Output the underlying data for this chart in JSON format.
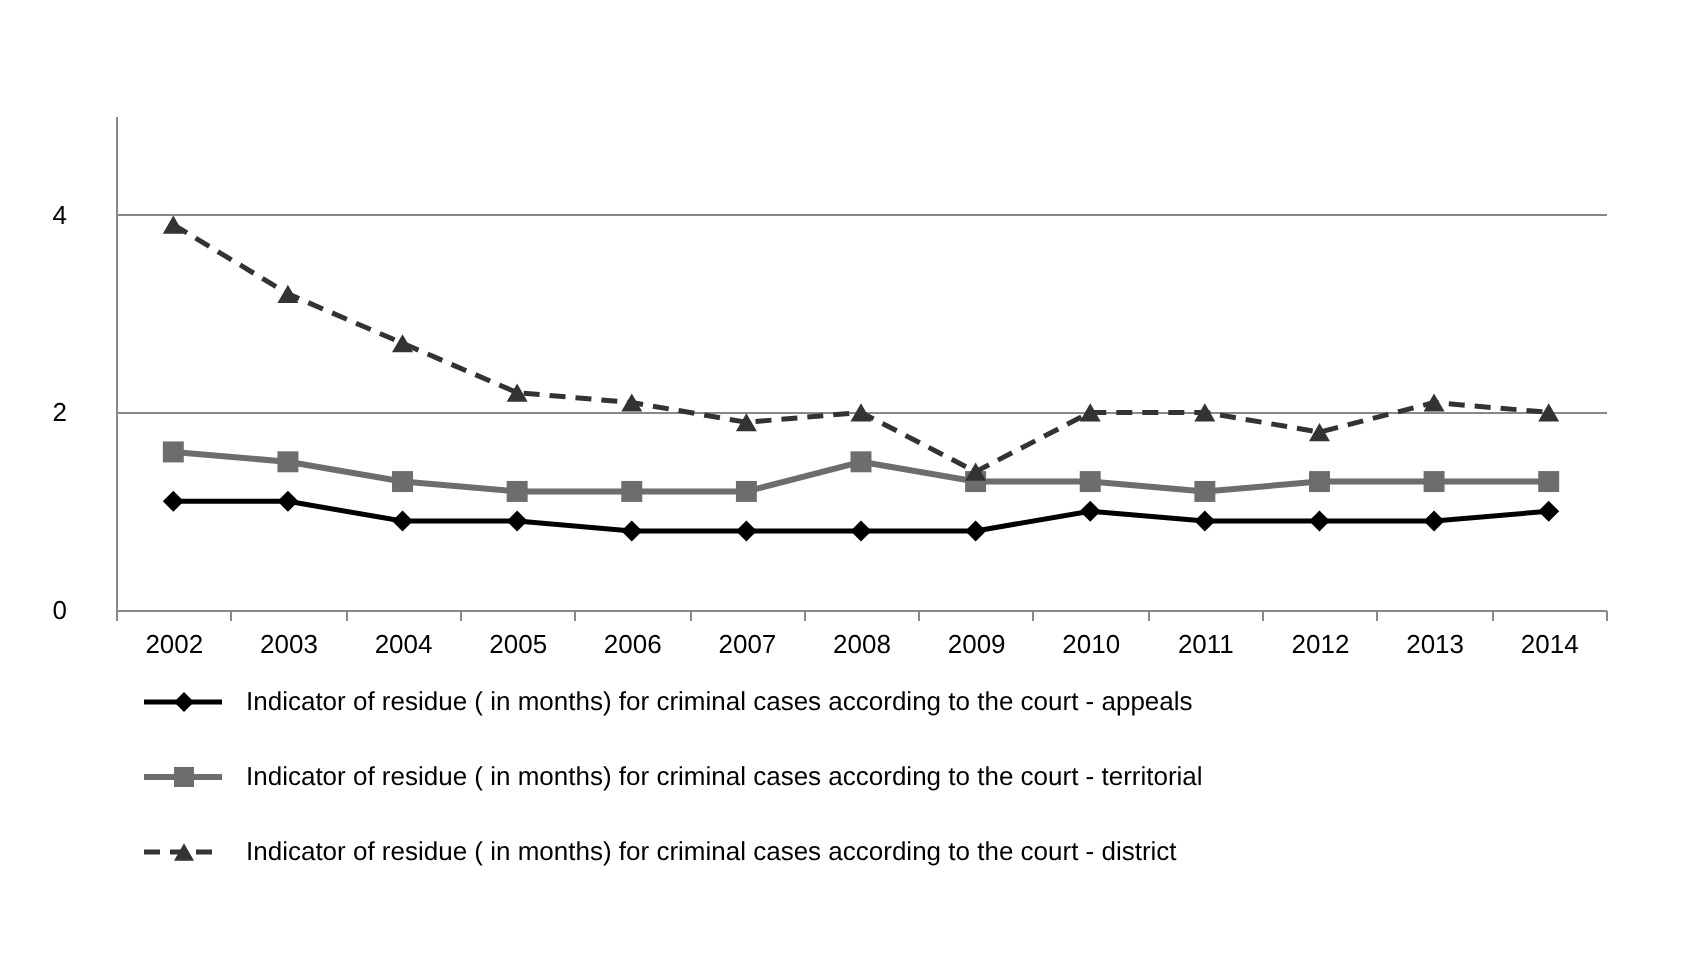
{
  "chart_data": {
    "type": "line",
    "categories": [
      "2002",
      "2003",
      "2004",
      "2005",
      "2006",
      "2007",
      "2008",
      "2009",
      "2010",
      "2011",
      "2012",
      "2013",
      "2014"
    ],
    "ylim": [
      0,
      5
    ],
    "yticks": [
      0,
      2,
      4
    ],
    "grid": "y",
    "legend": "bottom",
    "series": [
      {
        "name": "Indicator of residue ( in months) for criminal cases according to the court - appeals",
        "color": "#000000",
        "marker": "diamond",
        "line_style": "solid",
        "values": [
          1.1,
          1.1,
          0.9,
          0.9,
          0.8,
          0.8,
          0.8,
          0.8,
          1.0,
          0.9,
          0.9,
          0.9,
          1.0
        ]
      },
      {
        "name": "Indicator of residue ( in months) for criminal cases according to the court - territorial",
        "color": "#6d6d6d",
        "marker": "square",
        "line_style": "solid",
        "values": [
          1.6,
          1.5,
          1.3,
          1.2,
          1.2,
          1.2,
          1.5,
          1.3,
          1.3,
          1.2,
          1.3,
          1.3,
          1.3
        ]
      },
      {
        "name": "Indicator of residue ( in months) for criminal cases according to the court - district",
        "color": "#333333",
        "marker": "triangle",
        "line_style": "dashed",
        "values": [
          3.9,
          3.2,
          2.7,
          2.2,
          2.1,
          1.9,
          2.0,
          1.4,
          2.0,
          2.0,
          1.8,
          2.1,
          2.0
        ]
      }
    ]
  }
}
